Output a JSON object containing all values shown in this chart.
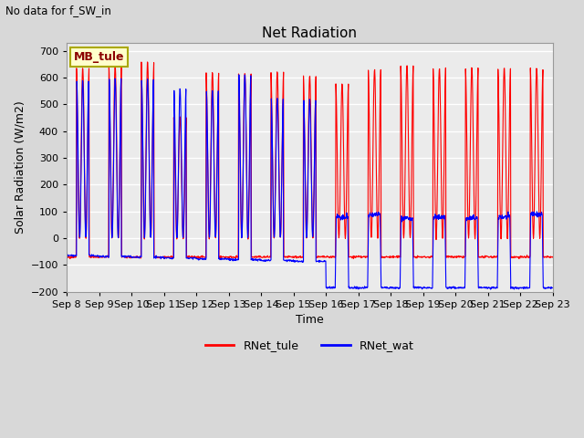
{
  "title": "Net Radiation",
  "subtitle": "No data for f_SW_in",
  "ylabel": "Solar Radiation (W/m2)",
  "xlabel": "Time",
  "ylim": [
    -200,
    730
  ],
  "yticks": [
    -200,
    -100,
    0,
    100,
    200,
    300,
    400,
    500,
    600,
    700
  ],
  "legend_label1": "RNet_tule",
  "legend_label2": "RNet_wat",
  "color1": "#ff0000",
  "color2": "#0000ff",
  "legend_box_color": "#ffffcc",
  "legend_box_edge": "#aaa800",
  "legend_box_text": "MB_tule",
  "bg_color": "#d8d8d8",
  "plot_bg": "#ebebeb",
  "n_days": 15,
  "start_day": 8,
  "peaks_tule": [
    638,
    648,
    660,
    455,
    622,
    618,
    622,
    608,
    578,
    632,
    648,
    638,
    638,
    638,
    638
  ],
  "peaks_wat_phase1": [
    590,
    600,
    598,
    560,
    555,
    615,
    525,
    520
  ],
  "peaks_wat_phase2": [
    80,
    90,
    75,
    80,
    75,
    80,
    90
  ],
  "night_tule": -70,
  "night_wat_phase1": -65,
  "night_wat_phase2": -185,
  "transition_day": 8
}
